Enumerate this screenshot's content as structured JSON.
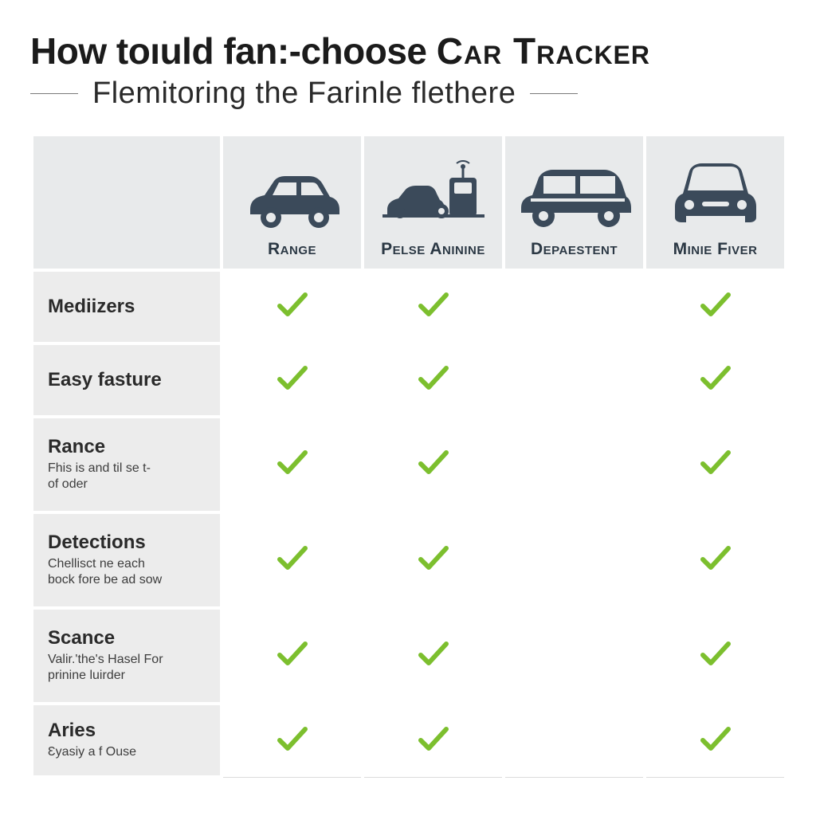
{
  "title_part1": "How toıuld fan:-choose ",
  "title_part2": "Car Tracker",
  "subtitle": "Flemitoring the Farinle flethere",
  "colors": {
    "icon": "#3b4a5a",
    "check": "#7cbf2e",
    "head_bg": "#e8eaeb",
    "label_bg": "#ececec",
    "border_light": "#dcdcdc"
  },
  "columns": [
    {
      "label": "Range",
      "icon": "car_side"
    },
    {
      "label": "Pelse Aninine",
      "icon": "device"
    },
    {
      "label": "Depaestent",
      "icon": "suv"
    },
    {
      "label": "Minie Fiver",
      "icon": "car_front"
    }
  ],
  "rows": [
    {
      "title": "Mediizers",
      "desc": "",
      "cells": [
        "check",
        "check",
        "",
        "check"
      ],
      "tall": false
    },
    {
      "title": "Easy fasture",
      "desc": "",
      "cells": [
        "check",
        "check",
        "",
        "check"
      ],
      "tall": false
    },
    {
      "title": "Rance",
      "desc": "Fhis is and til se t-\nof oder",
      "cells": [
        "check",
        "check",
        "",
        "check"
      ],
      "tall": true
    },
    {
      "title": "Detections",
      "desc": "Chellisct ne each\nbock fore be ad sow",
      "cells": [
        "check",
        "check",
        "",
        "check"
      ],
      "tall": true
    },
    {
      "title": "Scance",
      "desc": "Valir.'the's Hasel For\nprinine luirder",
      "cells": [
        "check",
        "check",
        "",
        "check"
      ],
      "tall": true
    },
    {
      "title": "Aries",
      "desc": "Ɛyasiy a f Ouse",
      "cells": [
        "check",
        "check",
        "",
        "check"
      ],
      "tall": false
    }
  ],
  "check_stroke_width": 6
}
